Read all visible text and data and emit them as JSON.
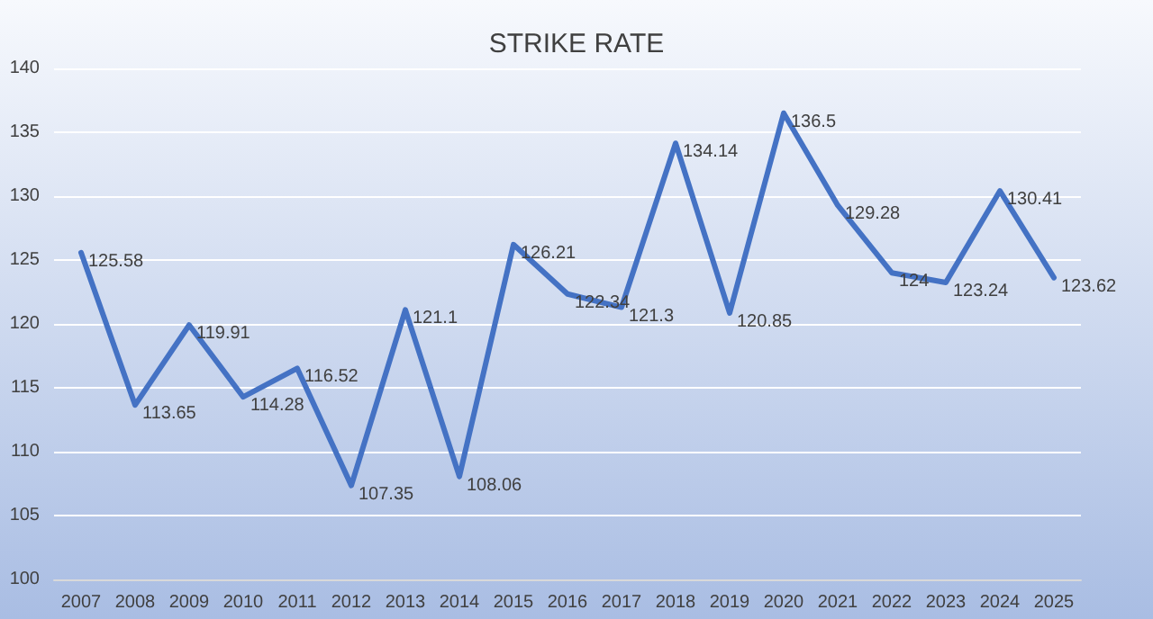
{
  "chart_data": {
    "type": "line",
    "title": "STRIKE RATE",
    "categories": [
      "2007",
      "2008",
      "2009",
      "2010",
      "2011",
      "2012",
      "2013",
      "2014",
      "2015",
      "2016",
      "2017",
      "2018",
      "2019",
      "2020",
      "2021",
      "2022",
      "2023",
      "2024",
      "2025"
    ],
    "series": [
      {
        "color": "#4472c4",
        "values": [
          125.58,
          113.65,
          119.91,
          114.28,
          116.52,
          107.35,
          121.1,
          108.06,
          126.21,
          122.34,
          121.3,
          134.14,
          120.85,
          136.5,
          129.28,
          124,
          123.24,
          130.41,
          123.62
        ]
      }
    ],
    "ylim": [
      100,
      140
    ],
    "yticks": [
      100,
      105,
      110,
      115,
      120,
      125,
      130,
      135,
      140
    ],
    "grid": "y",
    "marker": "none",
    "line_style": "solid",
    "data_labels": true
  }
}
